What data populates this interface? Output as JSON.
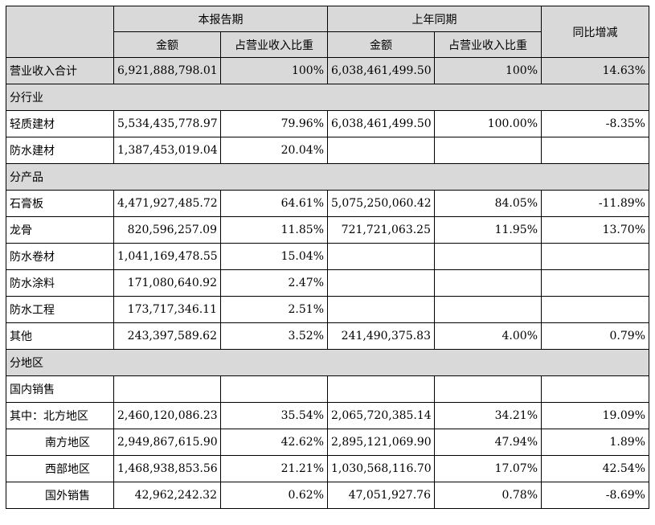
{
  "header": {
    "current_period": "本报告期",
    "prior_period": "上年同期",
    "yoy": "同比增减",
    "amount": "金额",
    "share": "占营业收入比重"
  },
  "total": {
    "label": "营业收入合计",
    "cur_amount": "6,921,888,798.01",
    "cur_share": "100%",
    "prev_amount": "6,038,461,499.50",
    "prev_share": "100%",
    "yoy": "14.63%"
  },
  "sections": {
    "industry": "分行业",
    "product": "分产品",
    "region": "分地区"
  },
  "industry_rows": [
    {
      "label": "轻质建材",
      "cur_amount": "5,534,435,778.97",
      "cur_share": "79.96%",
      "prev_amount": "6,038,461,499.50",
      "prev_share": "100.00%",
      "yoy": "-8.35%"
    },
    {
      "label": "防水建材",
      "cur_amount": "1,387,453,019.04",
      "cur_share": "20.04%",
      "prev_amount": "",
      "prev_share": "",
      "yoy": ""
    }
  ],
  "product_rows": [
    {
      "label": "石膏板",
      "cur_amount": "4,471,927,485.72",
      "cur_share": "64.61%",
      "prev_amount": "5,075,250,060.42",
      "prev_share": "84.05%",
      "yoy": "-11.89%"
    },
    {
      "label": "龙骨",
      "cur_amount": "820,596,257.09",
      "cur_share": "11.85%",
      "prev_amount": "721,721,063.25",
      "prev_share": "11.95%",
      "yoy": "13.70%"
    },
    {
      "label": "防水卷材",
      "cur_amount": "1,041,169,478.55",
      "cur_share": "15.04%",
      "prev_amount": "",
      "prev_share": "",
      "yoy": ""
    },
    {
      "label": "防水涂料",
      "cur_amount": "171,080,640.92",
      "cur_share": "2.47%",
      "prev_amount": "",
      "prev_share": "",
      "yoy": ""
    },
    {
      "label": "防水工程",
      "cur_amount": "173,717,346.11",
      "cur_share": "2.51%",
      "prev_amount": "",
      "prev_share": "",
      "yoy": ""
    },
    {
      "label": "其他",
      "cur_amount": "243,397,589.62",
      "cur_share": "3.52%",
      "prev_amount": "241,490,375.83",
      "prev_share": "4.00%",
      "yoy": "0.79%"
    }
  ],
  "domestic_label": "国内销售",
  "region_rows": [
    {
      "label": "其中：北方地区",
      "cur_amount": "2,460,120,086.23",
      "cur_share": "35.54%",
      "prev_amount": "2,065,720,385.14",
      "prev_share": "34.21%",
      "yoy": "19.09%"
    },
    {
      "label": "南方地区",
      "cur_amount": "2,949,867,615.90",
      "cur_share": "42.62%",
      "prev_amount": "2,895,121,069.90",
      "prev_share": "47.94%",
      "yoy": "1.89%"
    },
    {
      "label": "西部地区",
      "cur_amount": "1,468,938,853.56",
      "cur_share": "21.21%",
      "prev_amount": "1,030,568,116.70",
      "prev_share": "17.07%",
      "yoy": "42.54%"
    },
    {
      "label": "国外销售",
      "cur_amount": "42,962,242.32",
      "cur_share": "0.62%",
      "prev_amount": "47,051,927.76",
      "prev_share": "0.78%",
      "yoy": "-8.69%"
    }
  ]
}
